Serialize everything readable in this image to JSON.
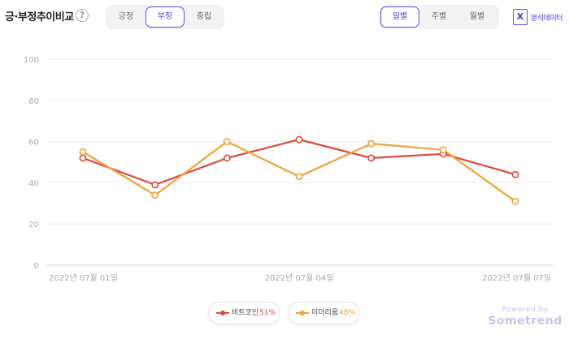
{
  "header": {
    "title": "긍·부정추이비교",
    "help_symbol": "?",
    "sentiment_tabs": [
      {
        "label": "긍정",
        "active": false
      },
      {
        "label": "부정",
        "active": true
      },
      {
        "label": "중립",
        "active": false
      }
    ],
    "period_tabs": [
      {
        "label": "일별",
        "active": true
      },
      {
        "label": "주별",
        "active": false
      },
      {
        "label": "월별",
        "active": false
      }
    ],
    "export_icon": "excel-icon",
    "export_icon_letter": "X",
    "export_label": "분석데이터"
  },
  "legend": [
    {
      "name": "비트코인",
      "value": "51%"
    },
    {
      "name": "이더리움",
      "value": "48%"
    }
  ],
  "branding": {
    "small": "Powered by",
    "big": "Sometrend"
  },
  "colors": {
    "bitcoin": "#e0473c",
    "ethereum": "#f0a23b",
    "accent": "#5b4fe0"
  },
  "chart_data": {
    "type": "line",
    "x": [
      "2022-07-01",
      "2022-07-02",
      "2022-07-03",
      "2022-07-04",
      "2022-07-05",
      "2022-07-06",
      "2022-07-07"
    ],
    "x_tick_labels": [
      {
        "index": 0,
        "label": "2022년 07월 01일"
      },
      {
        "index": 3,
        "label": "2022년 07월 04일"
      },
      {
        "index": 6,
        "label": "2022년 07월 07일"
      }
    ],
    "y_ticks": [
      0,
      20,
      40,
      60,
      80,
      100
    ],
    "ylim": [
      0,
      100
    ],
    "series": [
      {
        "name": "비트코인",
        "color": "#e0473c",
        "values": [
          52,
          39,
          52,
          61,
          52,
          54,
          44
        ]
      },
      {
        "name": "이더리움",
        "color": "#f0a23b",
        "values": [
          55,
          34,
          60,
          43,
          59,
          56,
          31
        ]
      }
    ],
    "grid": true,
    "legend_position": "bottom"
  }
}
